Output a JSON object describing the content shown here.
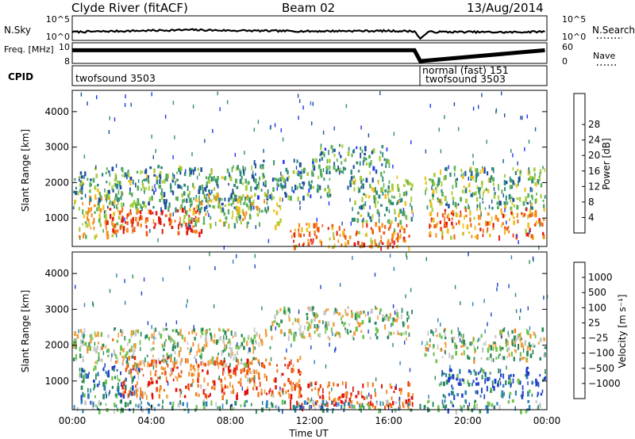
{
  "header": {
    "station": "Clyde River (fitACF)",
    "beam": "Beam 02",
    "date": "13/Aug/2014"
  },
  "chart_data": [
    {
      "type": "line",
      "name": "noise",
      "left_label": "N.Sky",
      "right_label": "N.Search",
      "left_ticks": [
        "10^5",
        "10^0"
      ],
      "right_ticks": [
        "10^5",
        "10^0"
      ],
      "x": [
        0,
        2,
        4,
        6,
        8,
        10,
        12,
        14,
        16,
        17.3,
        17.6,
        18,
        20,
        22,
        23.9
      ],
      "series": [
        {
          "values": [
            2.2,
            2.4,
            2.6,
            2.8,
            2.6,
            2.5,
            2.4,
            2.5,
            2.5,
            2.4,
            0.3,
            2.2,
            2.2,
            2.1,
            2.3
          ]
        }
      ]
    },
    {
      "type": "line",
      "name": "frequency",
      "left_label": "Freq. [MHz]",
      "right_label": "Nave",
      "left_ticks": [
        "10",
        "8"
      ],
      "right_ticks": [
        "60",
        "0"
      ],
      "x": [
        0,
        17.3,
        17.6,
        23.9
      ],
      "series": [
        {
          "values": [
            10.3,
            10.3,
            8.4,
            10.3
          ]
        }
      ]
    },
    {
      "type": "table",
      "name": "cpid",
      "label": "CPID",
      "segments": [
        {
          "start": 0,
          "end": 17.45,
          "lines": [
            "twofsound 3503"
          ]
        },
        {
          "start": 17.45,
          "end": 24,
          "lines": [
            "normal (fast) 151",
            "twofsound 3503"
          ]
        }
      ]
    },
    {
      "type": "heatmap",
      "name": "power",
      "ylabel": "Slant Range [km]",
      "ylim": [
        200,
        4600
      ],
      "yticks": [
        "1000",
        "2000",
        "3000",
        "4000"
      ],
      "colorbar": {
        "label": "Power [dB]",
        "ticks": [
          "4",
          "8",
          "12",
          "16",
          "20",
          "24",
          "28"
        ],
        "colors": [
          "#2030ff",
          "#1f4fa0",
          "#2e8a7a",
          "#54ae5a",
          "#a8cc3a",
          "#f0c020",
          "#f48a18",
          "#ee5a12",
          "#e01810"
        ]
      },
      "regions": [
        {
          "t": [
            0.2,
            2.5
          ],
          "r": [
            500,
            1800
          ],
          "level": 0.6
        },
        {
          "t": [
            1.5,
            6.5
          ],
          "r": [
            600,
            1300
          ],
          "level": 0.9
        },
        {
          "t": [
            0.0,
            9.0
          ],
          "r": [
            1300,
            2500
          ],
          "level": 0.35
        },
        {
          "t": [
            5.5,
            10.5
          ],
          "r": [
            800,
            1700
          ],
          "level": 0.5
        },
        {
          "t": [
            9.0,
            13.0
          ],
          "r": [
            1600,
            2700
          ],
          "level": 0.3
        },
        {
          "t": [
            12.5,
            16.0
          ],
          "r": [
            2300,
            3100
          ],
          "level": 0.3
        },
        {
          "t": [
            11.0,
            17.2
          ],
          "r": [
            200,
            900
          ],
          "level": 0.75
        },
        {
          "t": [
            14.0,
            17.2
          ],
          "r": [
            900,
            2200
          ],
          "level": 0.4
        },
        {
          "t": [
            17.8,
            23.9
          ],
          "r": [
            1300,
            2500
          ],
          "level": 0.4
        },
        {
          "t": [
            18.0,
            23.9
          ],
          "r": [
            500,
            1300
          ],
          "level": 0.75
        }
      ]
    },
    {
      "type": "heatmap",
      "name": "velocity",
      "xlabel": "Time UT",
      "ylabel": "Slant Range [km]",
      "ylim": [
        200,
        4600
      ],
      "yticks": [
        "1000",
        "2000",
        "3000",
        "4000"
      ],
      "xticks": [
        "00:00",
        "04:00",
        "08:00",
        "12:00",
        "16:00",
        "20:00",
        "00:00"
      ],
      "xlim": [
        0,
        24
      ],
      "colorbar": {
        "label": "Velocity [m s⁻¹]",
        "ticks": [
          "1000",
          "500",
          "100",
          "25",
          "−25",
          "−100",
          "−500",
          "−1000"
        ],
        "colors": [
          "#2040c8",
          "#2c7fb8",
          "#2a8a5a",
          "#6cc24a",
          "#c8c8c8",
          "#f0a040",
          "#f07818",
          "#ee4a18",
          "#e01010"
        ]
      },
      "regions": [
        {
          "t": [
            0.3,
            3.5
          ],
          "r": [
            600,
            1500
          ],
          "level": 0.25
        },
        {
          "t": [
            0.0,
            10.0
          ],
          "r": [
            1500,
            2500
          ],
          "level": 0.45
        },
        {
          "t": [
            2.5,
            11.5
          ],
          "r": [
            600,
            1700
          ],
          "level": 0.75
        },
        {
          "t": [
            10.0,
            17.2
          ],
          "r": [
            2200,
            3100
          ],
          "level": 0.45
        },
        {
          "t": [
            11.0,
            17.2
          ],
          "r": [
            300,
            1000
          ],
          "level": 0.8
        },
        {
          "t": [
            0.0,
            23.9
          ],
          "r": [
            200,
            500
          ],
          "level": 0.3
        },
        {
          "t": [
            17.8,
            23.9
          ],
          "r": [
            1600,
            2500
          ],
          "level": 0.45
        },
        {
          "t": [
            18.5,
            23.9
          ],
          "r": [
            600,
            1400
          ],
          "level": 0.15
        }
      ]
    }
  ]
}
